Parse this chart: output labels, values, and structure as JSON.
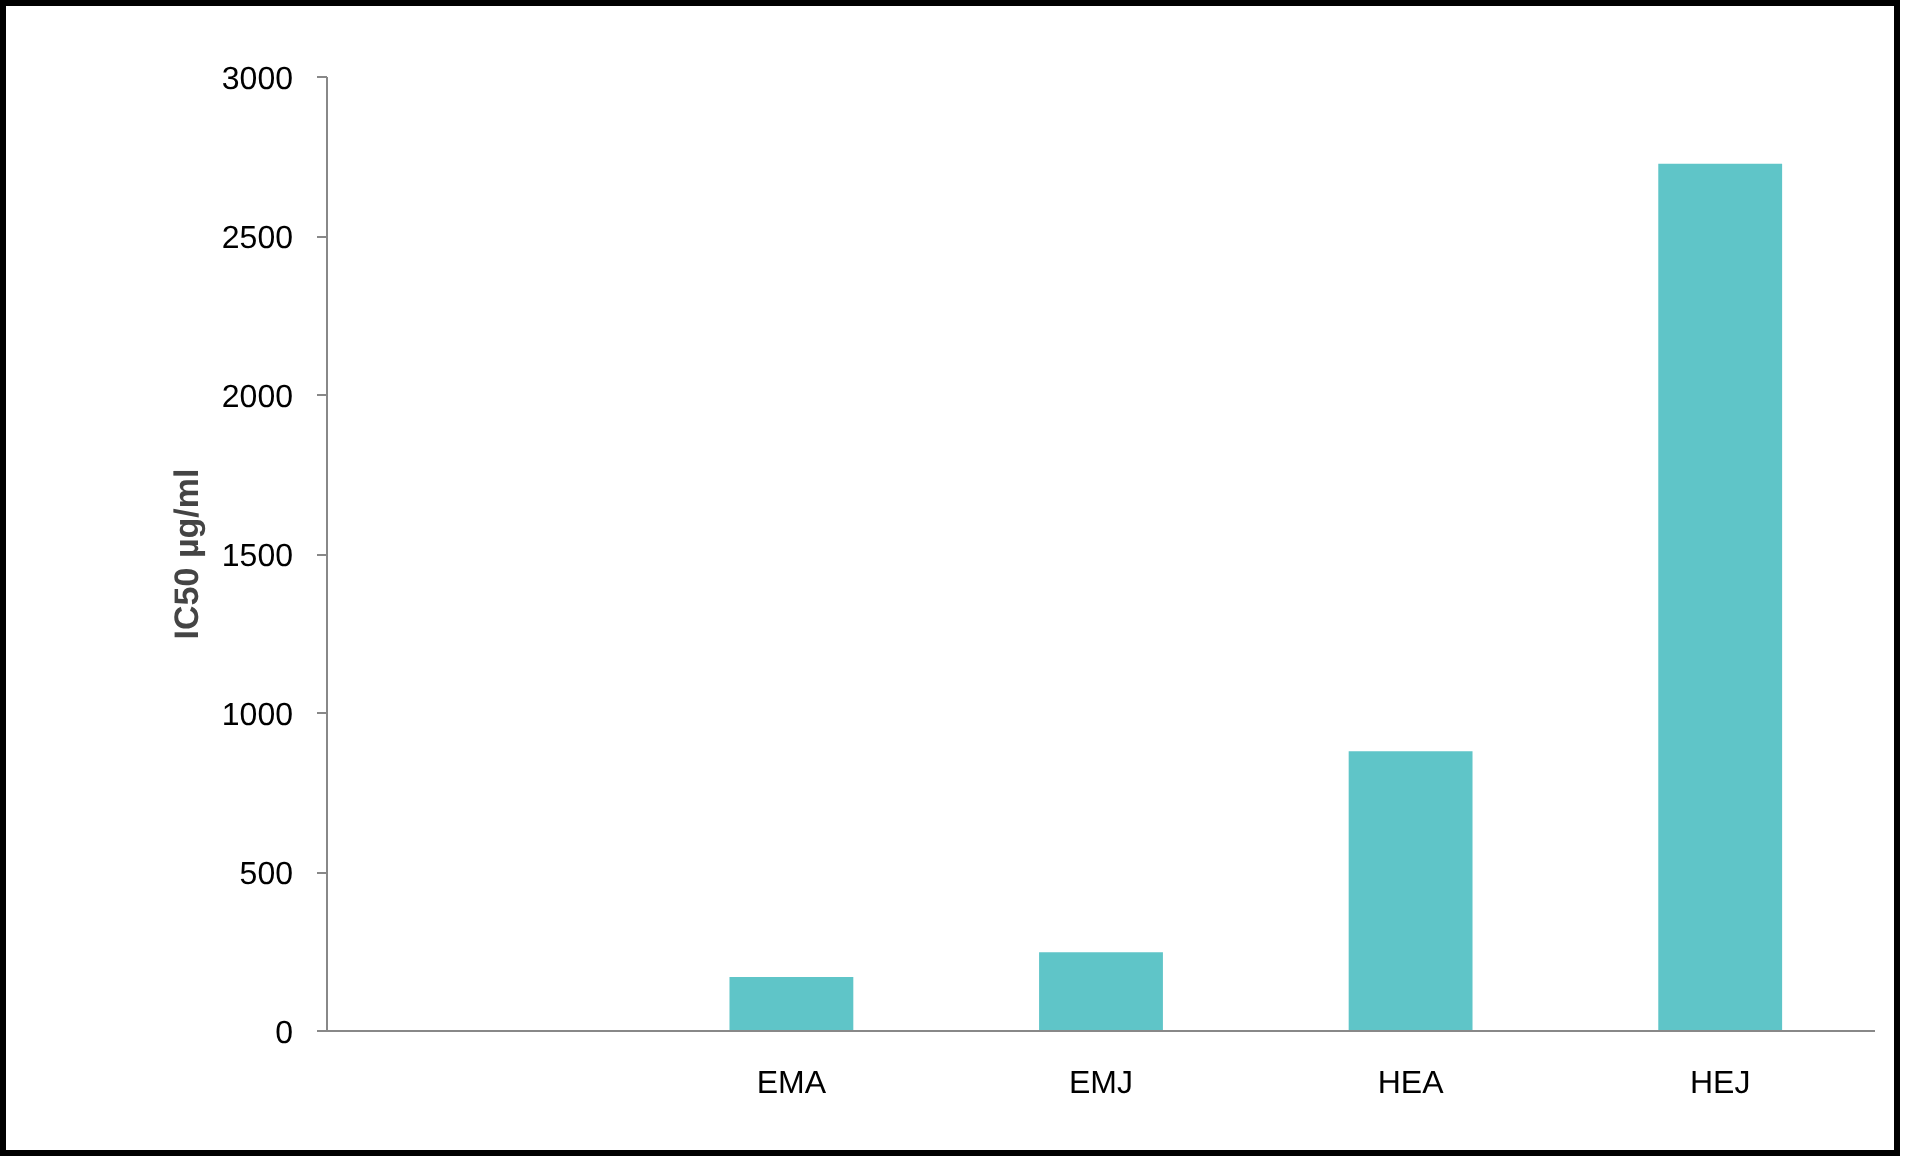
{
  "chart_data": {
    "type": "bar",
    "ylabel": "IC50 µg/ml",
    "categories": [
      null,
      "EMA",
      "EMJ",
      "HEA",
      "HEJ"
    ],
    "values": [
      null,
      170,
      248,
      880,
      2727
    ],
    "color": "#5fc5c8",
    "ylim": [
      0,
      3000
    ],
    "yticks": [
      0,
      500,
      1000,
      1500,
      2000,
      2500,
      3000
    ],
    "grid": false
  }
}
